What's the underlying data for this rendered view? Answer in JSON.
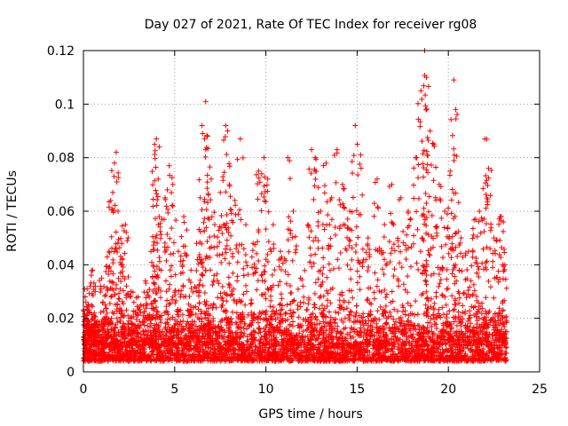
{
  "chart_data": {
    "type": "scatter",
    "title": "Day 027 of 2021, Rate Of TEC Index for receiver rg08",
    "xlabel": "GPS time / hours",
    "ylabel": "ROTI / TECUs",
    "xlim": [
      0,
      25
    ],
    "ylim": [
      0,
      0.12
    ],
    "x_ticks": [
      "0",
      "5",
      "10",
      "15",
      "20",
      "25"
    ],
    "y_ticks": [
      "0",
      "0.02",
      "0.04",
      "0.06",
      "0.08",
      "0.1",
      "0.12"
    ],
    "grid": true,
    "legend": "none",
    "marker": "plus",
    "color": "#ff0000",
    "data_span_hours": [
      0,
      23.2
    ],
    "series": [
      {
        "values_description_points": [
          [
            0.0,
            0.012
          ],
          [
            0.1,
            0.028
          ],
          [
            0.2,
            0.031
          ],
          [
            0.3,
            0.022
          ],
          [
            0.5,
            0.038
          ],
          [
            0.7,
            0.018
          ],
          [
            1.0,
            0.035
          ],
          [
            1.2,
            0.025
          ],
          [
            1.4,
            0.045
          ],
          [
            1.5,
            0.064
          ],
          [
            1.7,
            0.078
          ],
          [
            1.8,
            0.082
          ],
          [
            1.9,
            0.06
          ],
          [
            2.1,
            0.048
          ],
          [
            2.3,
            0.055
          ],
          [
            2.6,
            0.03
          ],
          [
            3.0,
            0.028
          ],
          [
            3.4,
            0.034
          ],
          [
            3.7,
            0.045
          ],
          [
            3.9,
            0.085
          ],
          [
            4.0,
            0.087
          ],
          [
            4.1,
            0.072
          ],
          [
            4.3,
            0.057
          ],
          [
            4.6,
            0.068
          ],
          [
            4.7,
            0.077
          ],
          [
            4.9,
            0.07
          ],
          [
            5.2,
            0.045
          ],
          [
            5.5,
            0.058
          ],
          [
            5.9,
            0.038
          ],
          [
            6.2,
            0.048
          ],
          [
            6.4,
            0.065
          ],
          [
            6.5,
            0.092
          ],
          [
            6.7,
            0.101
          ],
          [
            6.8,
            0.088
          ],
          [
            7.0,
            0.072
          ],
          [
            7.2,
            0.055
          ],
          [
            7.5,
            0.067
          ],
          [
            7.8,
            0.092
          ],
          [
            7.9,
            0.09
          ],
          [
            8.0,
            0.07
          ],
          [
            8.3,
            0.064
          ],
          [
            8.6,
            0.087
          ],
          [
            8.9,
            0.055
          ],
          [
            9.3,
            0.048
          ],
          [
            9.6,
            0.075
          ],
          [
            9.9,
            0.08
          ],
          [
            10.1,
            0.072
          ],
          [
            10.4,
            0.055
          ],
          [
            10.8,
            0.045
          ],
          [
            11.2,
            0.08
          ],
          [
            11.5,
            0.06
          ],
          [
            11.9,
            0.035
          ],
          [
            12.3,
            0.055
          ],
          [
            12.5,
            0.083
          ],
          [
            12.7,
            0.08
          ],
          [
            13.0,
            0.06
          ],
          [
            13.3,
            0.078
          ],
          [
            13.6,
            0.065
          ],
          [
            13.9,
            0.083
          ],
          [
            14.2,
            0.07
          ],
          [
            14.6,
            0.06
          ],
          [
            14.9,
            0.092
          ],
          [
            15.2,
            0.081
          ],
          [
            15.6,
            0.05
          ],
          [
            16.1,
            0.072
          ],
          [
            16.5,
            0.055
          ],
          [
            16.9,
            0.07
          ],
          [
            17.4,
            0.065
          ],
          [
            17.8,
            0.06
          ],
          [
            18.2,
            0.08
          ],
          [
            18.5,
            0.105
          ],
          [
            18.7,
            0.12
          ],
          [
            18.8,
            0.11
          ],
          [
            19.0,
            0.09
          ],
          [
            19.2,
            0.085
          ],
          [
            19.5,
            0.07
          ],
          [
            19.8,
            0.06
          ],
          [
            20.1,
            0.075
          ],
          [
            20.3,
            0.109
          ],
          [
            20.4,
            0.098
          ],
          [
            20.7,
            0.05
          ],
          [
            21.1,
            0.045
          ],
          [
            21.5,
            0.057
          ],
          [
            21.7,
            0.06
          ],
          [
            22.0,
            0.087
          ],
          [
            22.2,
            0.076
          ],
          [
            22.5,
            0.05
          ],
          [
            22.9,
            0.058
          ],
          [
            23.1,
            0.04
          ],
          [
            23.2,
            0.015
          ]
        ]
      }
    ]
  }
}
